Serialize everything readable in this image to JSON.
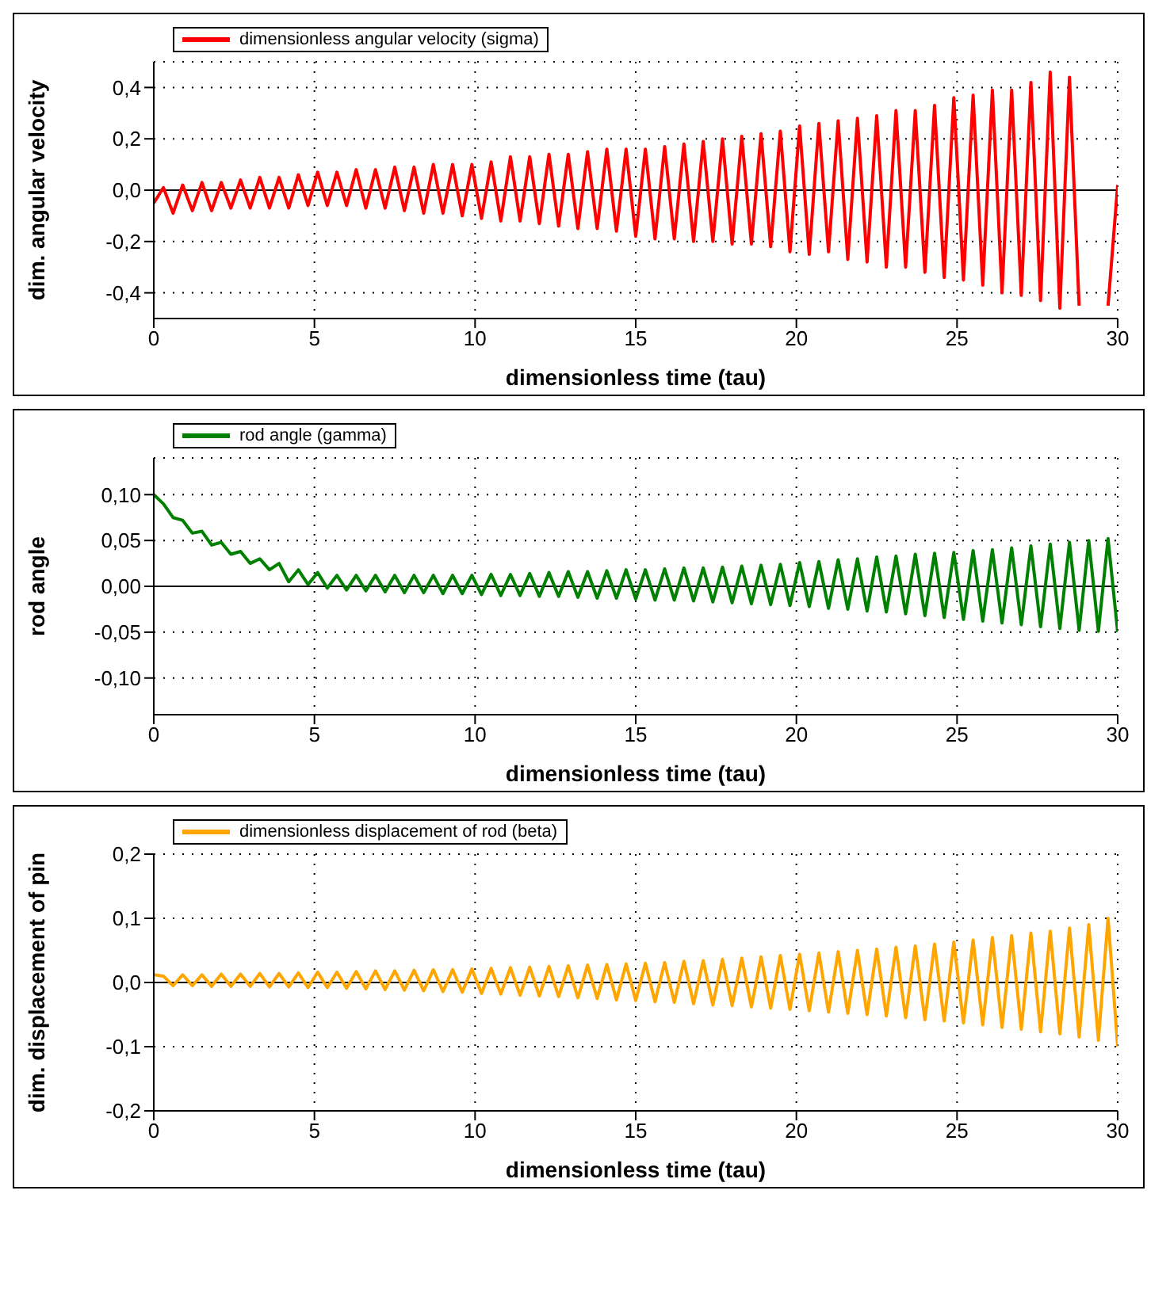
{
  "chart_data": [
    {
      "type": "line",
      "xlabel": "dimensionless time (tau)",
      "ylabel": "dim. angular velocity",
      "grid": true,
      "legend": "top left",
      "line_style": "solid",
      "xlim": [
        0,
        30
      ],
      "xticks": [
        0,
        5,
        10,
        15,
        20,
        25,
        30
      ],
      "ylim": [
        -0.5,
        0.5
      ],
      "yticks": [
        {
          "value": -0.4,
          "label": "-0,4"
        },
        {
          "value": -0.2,
          "label": "-0,2"
        },
        {
          "value": 0,
          "label": "0,0"
        },
        {
          "value": 0.2,
          "label": "0,2"
        },
        {
          "value": 0.4,
          "label": "0,4"
        }
      ],
      "ref_lines": [
        {
          "axis": "y",
          "value": 0,
          "color": "#000000"
        }
      ],
      "x": [
        0,
        0.3,
        0.6,
        0.9,
        1.2,
        1.5,
        1.8,
        2.1,
        2.4,
        2.7,
        3,
        3.3,
        3.6,
        3.9,
        4.2,
        4.5,
        4.8,
        5.1,
        5.4,
        5.7,
        6,
        6.3,
        6.6,
        6.9,
        7.2,
        7.5,
        7.8,
        8.1,
        8.4,
        8.7,
        9,
        9.3,
        9.6,
        9.9,
        10.2,
        10.5,
        10.8,
        11.1,
        11.4,
        11.7,
        12,
        12.3,
        12.6,
        12.9,
        13.2,
        13.5,
        13.8,
        14.1,
        14.4,
        14.7,
        15,
        15.3,
        15.6,
        15.9,
        16.2,
        16.5,
        16.8,
        17.1,
        17.4,
        17.7,
        18,
        18.3,
        18.6,
        18.9,
        19.2,
        19.5,
        19.8,
        20.1,
        20.4,
        20.7,
        21,
        21.3,
        21.6,
        21.9,
        22.2,
        22.5,
        22.8,
        23.1,
        23.4,
        23.7,
        24,
        24.3,
        24.6,
        24.9,
        25.2,
        25.5,
        25.8,
        26.1,
        26.4,
        26.7,
        27,
        27.3,
        27.6,
        27.9,
        28.2,
        28.5,
        28.8,
        29.1,
        29.4,
        29.7,
        30
      ],
      "series": [
        {
          "name": "dimensionless angular velocity (sigma)",
          "color": "#ff0000",
          "values": [
            -0.05,
            0.01,
            -0.09,
            0.02,
            -0.08,
            0.03,
            -0.08,
            0.03,
            -0.07,
            0.04,
            -0.07,
            0.05,
            -0.07,
            0.05,
            -0.07,
            0.06,
            -0.06,
            0.07,
            -0.06,
            0.07,
            -0.06,
            0.08,
            -0.07,
            0.08,
            -0.07,
            0.09,
            -0.08,
            0.09,
            -0.09,
            0.1,
            -0.09,
            0.1,
            -0.1,
            0.1,
            -0.11,
            0.11,
            -0.12,
            0.13,
            -0.12,
            0.13,
            -0.13,
            0.14,
            -0.14,
            0.14,
            -0.15,
            0.15,
            -0.15,
            0.16,
            -0.16,
            0.16,
            -0.18,
            0.16,
            -0.19,
            0.17,
            -0.19,
            0.18,
            -0.2,
            0.19,
            -0.2,
            0.2,
            -0.21,
            0.21,
            -0.21,
            0.22,
            -0.22,
            0.23,
            -0.24,
            0.25,
            -0.25,
            0.26,
            -0.24,
            0.27,
            -0.27,
            0.28,
            -0.28,
            0.29,
            -0.3,
            0.31,
            -0.3,
            0.31,
            -0.32,
            0.33,
            -0.34,
            0.36,
            -0.35,
            0.37,
            -0.37,
            0.39,
            -0.4,
            0.39,
            -0.41,
            0.42,
            -0.43,
            0.46,
            -0.46,
            0.44,
            -0.45,
            null,
            null,
            -0.45,
            0.02
          ]
        }
      ]
    },
    {
      "type": "line",
      "xlabel": "dimensionless time (tau)",
      "ylabel": "rod angle",
      "grid": true,
      "legend": "top left",
      "line_style": "solid",
      "xlim": [
        0,
        30
      ],
      "xticks": [
        0,
        5,
        10,
        15,
        20,
        25,
        30
      ],
      "ylim": [
        -0.14,
        0.14
      ],
      "yticks": [
        {
          "value": -0.1,
          "label": "-0,10"
        },
        {
          "value": -0.05,
          "label": "-0,05"
        },
        {
          "value": 0,
          "label": "0,00"
        },
        {
          "value": 0.05,
          "label": "0,05"
        },
        {
          "value": 0.1,
          "label": "0,10"
        }
      ],
      "ref_lines": [
        {
          "axis": "y",
          "value": 0,
          "color": "#000000"
        }
      ],
      "x": [
        0,
        0.3,
        0.6,
        0.9,
        1.2,
        1.5,
        1.8,
        2.1,
        2.4,
        2.7,
        3,
        3.3,
        3.6,
        3.9,
        4.2,
        4.5,
        4.8,
        5.1,
        5.4,
        5.7,
        6,
        6.3,
        6.6,
        6.9,
        7.2,
        7.5,
        7.8,
        8.1,
        8.4,
        8.7,
        9,
        9.3,
        9.6,
        9.9,
        10.2,
        10.5,
        10.8,
        11.1,
        11.4,
        11.7,
        12,
        12.3,
        12.6,
        12.9,
        13.2,
        13.5,
        13.8,
        14.1,
        14.4,
        14.7,
        15,
        15.3,
        15.6,
        15.9,
        16.2,
        16.5,
        16.8,
        17.1,
        17.4,
        17.7,
        18,
        18.3,
        18.6,
        18.9,
        19.2,
        19.5,
        19.8,
        20.1,
        20.4,
        20.7,
        21,
        21.3,
        21.6,
        21.9,
        22.2,
        22.5,
        22.8,
        23.1,
        23.4,
        23.7,
        24,
        24.3,
        24.6,
        24.9,
        25.2,
        25.5,
        25.8,
        26.1,
        26.4,
        26.7,
        27,
        27.3,
        27.6,
        27.9,
        28.2,
        28.5,
        28.8,
        29.1,
        29.4,
        29.7,
        30
      ],
      "series": [
        {
          "name": "rod angle (gamma)",
          "color": "#008000",
          "values": [
            0.1,
            0.09,
            0.075,
            0.072,
            0.058,
            0.06,
            0.045,
            0.048,
            0.035,
            0.038,
            0.025,
            0.03,
            0.018,
            0.025,
            0.005,
            0.018,
            0.002,
            0.015,
            -0.002,
            0.012,
            -0.004,
            0.012,
            -0.005,
            0.012,
            -0.006,
            0.012,
            -0.007,
            0.012,
            -0.007,
            0.012,
            -0.008,
            0.012,
            -0.008,
            0.012,
            -0.009,
            0.013,
            -0.01,
            0.013,
            -0.01,
            0.014,
            -0.011,
            0.015,
            -0.011,
            0.016,
            -0.012,
            0.016,
            -0.013,
            0.017,
            -0.013,
            0.018,
            -0.014,
            0.018,
            -0.015,
            0.019,
            -0.015,
            0.02,
            -0.016,
            0.02,
            -0.017,
            0.021,
            -0.018,
            0.022,
            -0.019,
            0.023,
            -0.02,
            0.024,
            -0.021,
            0.026,
            -0.022,
            0.027,
            -0.024,
            0.029,
            -0.025,
            0.03,
            -0.027,
            0.032,
            -0.028,
            0.033,
            -0.03,
            0.035,
            -0.032,
            0.036,
            -0.034,
            0.037,
            -0.036,
            0.039,
            -0.038,
            0.04,
            -0.04,
            0.042,
            -0.042,
            0.044,
            -0.044,
            0.046,
            -0.046,
            0.048,
            -0.048,
            0.05,
            -0.049,
            0.052,
            -0.05
          ]
        }
      ]
    },
    {
      "type": "line",
      "xlabel": "dimensionless time (tau)",
      "ylabel": "dim. displacement of pin",
      "grid": true,
      "legend": "top left",
      "line_style": "solid",
      "xlim": [
        0,
        30
      ],
      "xticks": [
        0,
        5,
        10,
        15,
        20,
        25,
        30
      ],
      "ylim": [
        -0.2,
        0.2
      ],
      "yticks": [
        {
          "value": -0.2,
          "label": "-0,2"
        },
        {
          "value": -0.1,
          "label": "-0,1"
        },
        {
          "value": 0,
          "label": "0,0"
        },
        {
          "value": 0.1,
          "label": "0,1"
        },
        {
          "value": 0.2,
          "label": "0,2"
        }
      ],
      "ref_lines": [
        {
          "axis": "y",
          "value": 0,
          "color": "#000000"
        }
      ],
      "x": [
        0,
        0.3,
        0.6,
        0.9,
        1.2,
        1.5,
        1.8,
        2.1,
        2.4,
        2.7,
        3,
        3.3,
        3.6,
        3.9,
        4.2,
        4.5,
        4.8,
        5.1,
        5.4,
        5.7,
        6,
        6.3,
        6.6,
        6.9,
        7.2,
        7.5,
        7.8,
        8.1,
        8.4,
        8.7,
        9,
        9.3,
        9.6,
        9.9,
        10.2,
        10.5,
        10.8,
        11.1,
        11.4,
        11.7,
        12,
        12.3,
        12.6,
        12.9,
        13.2,
        13.5,
        13.8,
        14.1,
        14.4,
        14.7,
        15,
        15.3,
        15.6,
        15.9,
        16.2,
        16.5,
        16.8,
        17.1,
        17.4,
        17.7,
        18,
        18.3,
        18.6,
        18.9,
        19.2,
        19.5,
        19.8,
        20.1,
        20.4,
        20.7,
        21,
        21.3,
        21.6,
        21.9,
        22.2,
        22.5,
        22.8,
        23.1,
        23.4,
        23.7,
        24,
        24.3,
        24.6,
        24.9,
        25.2,
        25.5,
        25.8,
        26.1,
        26.4,
        26.7,
        27,
        27.3,
        27.6,
        27.9,
        28.2,
        28.5,
        28.8,
        29.1,
        29.4,
        29.7,
        30
      ],
      "series": [
        {
          "name": "dimensionless displacement of rod (beta)",
          "color": "#ffa500",
          "values": [
            0.012,
            0.01,
            -0.005,
            0.012,
            -0.005,
            0.012,
            -0.006,
            0.013,
            -0.006,
            0.013,
            -0.006,
            0.014,
            -0.007,
            0.014,
            -0.007,
            0.015,
            -0.008,
            0.016,
            -0.008,
            0.016,
            -0.009,
            0.017,
            -0.01,
            0.018,
            -0.011,
            0.018,
            -0.012,
            0.019,
            -0.013,
            0.02,
            -0.014,
            0.02,
            -0.015,
            0.021,
            -0.017,
            0.022,
            -0.018,
            0.023,
            -0.02,
            0.024,
            -0.021,
            0.025,
            -0.022,
            0.026,
            -0.024,
            0.027,
            -0.025,
            0.028,
            -0.027,
            0.029,
            -0.028,
            0.03,
            -0.03,
            0.031,
            -0.031,
            0.033,
            -0.033,
            0.034,
            -0.035,
            0.036,
            -0.036,
            0.038,
            -0.038,
            0.04,
            -0.04,
            0.042,
            -0.042,
            0.044,
            -0.044,
            0.046,
            -0.046,
            0.048,
            -0.048,
            0.05,
            -0.05,
            0.052,
            -0.052,
            0.055,
            -0.055,
            0.057,
            -0.058,
            0.06,
            -0.06,
            0.063,
            -0.063,
            0.066,
            -0.066,
            0.07,
            -0.07,
            0.073,
            -0.073,
            0.077,
            -0.077,
            0.08,
            -0.08,
            0.085,
            -0.085,
            0.09,
            -0.09,
            0.1,
            -0.1
          ]
        }
      ]
    }
  ]
}
